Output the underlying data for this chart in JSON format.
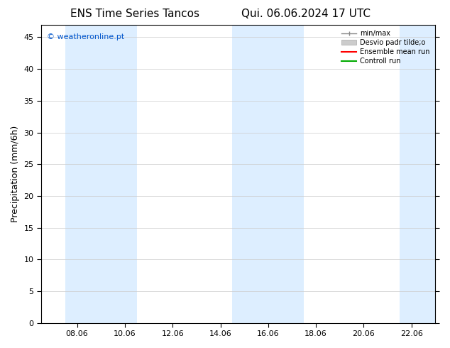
{
  "title_left": "ENS Time Series Tancos",
  "title_right": "Qui. 06.06.2024 17 UTC",
  "ylabel": "Precipitation (mm/6h)",
  "watermark": "© weatheronline.pt",
  "watermark_color": "#0055cc",
  "xlim_start": 6.5,
  "xlim_end": 23.0,
  "ylim_bottom": 0,
  "ylim_top": 47,
  "yticks": [
    0,
    5,
    10,
    15,
    20,
    25,
    30,
    35,
    40,
    45
  ],
  "xtick_labels": [
    "08.06",
    "10.06",
    "12.06",
    "14.06",
    "16.06",
    "18.06",
    "20.06",
    "22.06"
  ],
  "xtick_positions": [
    8,
    10,
    12,
    14,
    16,
    18,
    20,
    22
  ],
  "shaded_bands": [
    {
      "x_start": 7.5,
      "x_end": 10.5,
      "color": "#ddeeff"
    },
    {
      "x_start": 14.5,
      "x_end": 17.5,
      "color": "#ddeeff"
    },
    {
      "x_start": 21.5,
      "x_end": 23.1,
      "color": "#ddeeff"
    }
  ],
  "legend_labels": [
    "min/max",
    "Desvio padr tilde;o",
    "Ensemble mean run",
    "Controll run"
  ],
  "legend_colors": [
    "#999999",
    "#cccccc",
    "#ff0000",
    "#00aa00"
  ],
  "bg_color": "#ffffff",
  "grid_color": "#cccccc",
  "tick_fontsize": 8,
  "label_fontsize": 9,
  "title_fontsize": 11
}
